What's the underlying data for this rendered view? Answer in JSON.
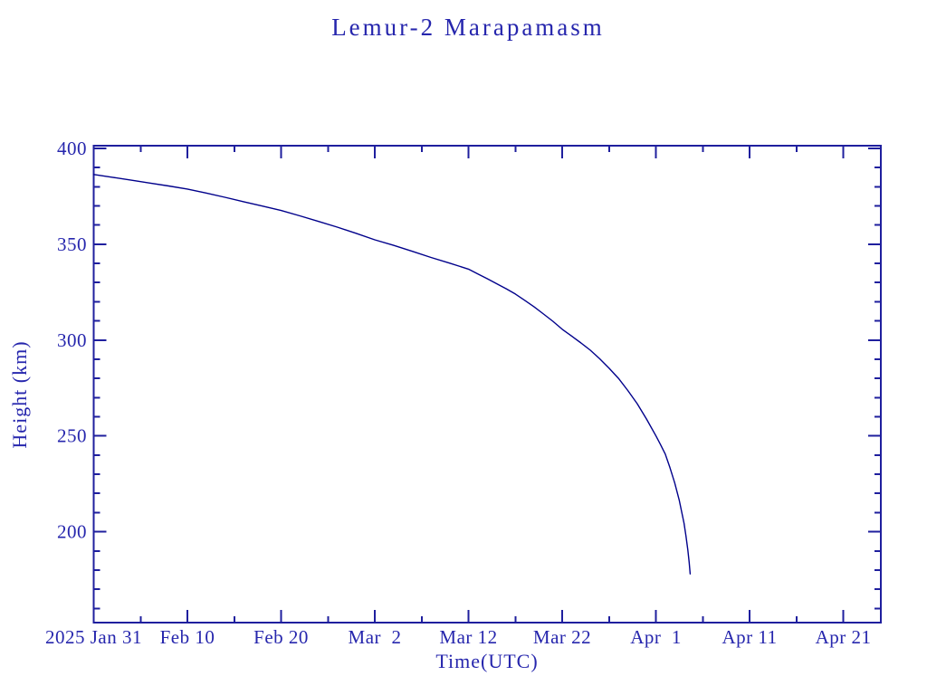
{
  "style": {
    "background": "#ffffff",
    "text_color": "#2626ad",
    "axis_color": "#1f1f9e",
    "curve_color": "#00008b"
  },
  "chart_data": {
    "type": "line",
    "title": "Lemur-2 Marapamasm",
    "xlabel": "Time(UTC)",
    "ylabel": "Height (km)",
    "grid": false,
    "legend": null,
    "x_axis": {
      "unit": "days since 2025 Jan 31 (UTC)",
      "range": [
        0,
        84
      ],
      "major_ticks": [
        0,
        10,
        20,
        30,
        40,
        50,
        60,
        70,
        80
      ],
      "major_tick_labels": [
        "2025 Jan 31",
        "Feb 10",
        "Feb 20",
        "Mar  2",
        "Mar 12",
        "Mar 22",
        "Apr  1",
        "Apr 11",
        "Apr 21"
      ],
      "minor_ticks": [
        5,
        15,
        25,
        35,
        45,
        55,
        65,
        75
      ]
    },
    "y_axis": {
      "unit": "km",
      "range": [
        152.6,
        401.4
      ],
      "major_ticks": [
        200,
        250,
        300,
        350,
        400
      ],
      "major_tick_labels": [
        "200",
        "250",
        "300",
        "350",
        "400"
      ],
      "minor_ticks": [
        160,
        170,
        180,
        190,
        210,
        220,
        230,
        240,
        260,
        270,
        280,
        290,
        310,
        320,
        330,
        340,
        360,
        370,
        380,
        390
      ]
    },
    "series": [
      {
        "name": "Height (km)",
        "color": "#00008b",
        "points_day_km": [
          [
            0,
            386.4
          ],
          [
            2,
            384.9
          ],
          [
            4,
            383.4
          ],
          [
            6,
            381.9
          ],
          [
            8,
            380.4
          ],
          [
            10,
            378.8
          ],
          [
            12,
            376.7
          ],
          [
            14,
            374.5
          ],
          [
            16,
            372.2
          ],
          [
            18,
            369.9
          ],
          [
            20,
            367.6
          ],
          [
            22,
            364.8
          ],
          [
            24,
            361.9
          ],
          [
            26,
            358.9
          ],
          [
            28,
            355.7
          ],
          [
            30,
            352.3
          ],
          [
            32,
            349.4
          ],
          [
            34,
            346.3
          ],
          [
            36,
            343.1
          ],
          [
            38,
            340.1
          ],
          [
            40,
            337.0
          ],
          [
            41,
            334.5
          ],
          [
            42,
            332.0
          ],
          [
            43,
            329.4
          ],
          [
            44,
            326.8
          ],
          [
            45,
            324.0
          ],
          [
            46,
            320.7
          ],
          [
            47,
            317.3
          ],
          [
            48,
            313.6
          ],
          [
            49,
            309.8
          ],
          [
            50,
            305.6
          ],
          [
            51,
            302.1
          ],
          [
            52,
            298.5
          ],
          [
            53,
            294.7
          ],
          [
            54,
            290.2
          ],
          [
            55,
            285.3
          ],
          [
            56,
            280.0
          ],
          [
            57,
            273.7
          ],
          [
            58,
            266.8
          ],
          [
            59,
            258.8
          ],
          [
            60,
            250.0
          ],
          [
            60.5,
            245.4
          ],
          [
            61,
            240.5
          ],
          [
            61.5,
            233.4
          ],
          [
            62,
            225.5
          ],
          [
            62.5,
            216.3
          ],
          [
            63,
            204.5
          ],
          [
            63.2,
            197.9
          ],
          [
            63.4,
            190.5
          ],
          [
            63.55,
            184.0
          ],
          [
            63.65,
            178.0
          ]
        ]
      }
    ]
  }
}
